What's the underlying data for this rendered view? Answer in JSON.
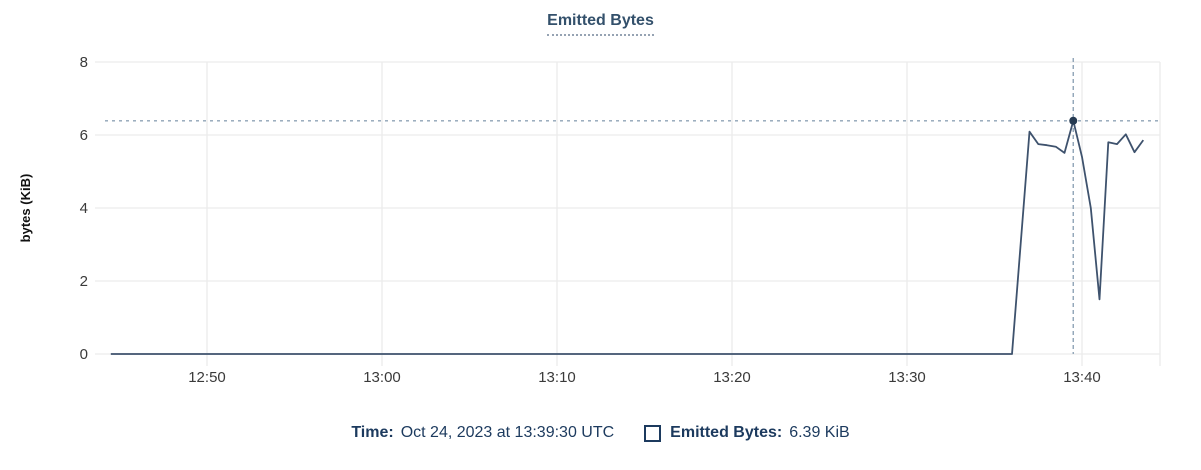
{
  "title": {
    "text": "Emitted Bytes"
  },
  "footer": {
    "time_label": "Time:",
    "time_value": "Oct 24, 2023 at 13:39:30 UTC",
    "series_label": "Emitted Bytes:",
    "series_value": "6.39 KiB"
  },
  "colors": {
    "line": "#3e526d",
    "dot": "#263b52",
    "crosshair": "#8fa3b6",
    "grid": "#ececec",
    "tick_text": "#3a3a3a",
    "axis_title_text": "#111111",
    "navy_text": "#1c3a5e",
    "title_text": "#33506b"
  },
  "chart_data": {
    "type": "line",
    "title": "Emitted Bytes",
    "xlabel": "",
    "ylabel": "bytes (KiB)",
    "y_ticks": [
      0,
      2,
      4,
      6,
      8
    ],
    "ylim": [
      0,
      8
    ],
    "x_ticks": [
      "12:50",
      "13:00",
      "13:10",
      "13:20",
      "13:30",
      "13:40"
    ],
    "x_range": [
      "12:43:30",
      "13:44:30"
    ],
    "grid": true,
    "legend_position": "bottom",
    "series": [
      {
        "name": "Emitted Bytes",
        "color": "#3e526d",
        "points": [
          [
            "12:44:30",
            0
          ],
          [
            "13:36:00",
            0
          ],
          [
            "13:37:00",
            6.09
          ],
          [
            "13:37:30",
            5.75
          ],
          [
            "13:38:00",
            5.72
          ],
          [
            "13:38:30",
            5.68
          ],
          [
            "13:39:00",
            5.51
          ],
          [
            "13:39:30",
            6.39
          ],
          [
            "13:40:00",
            5.4
          ],
          [
            "13:40:30",
            4.0
          ],
          [
            "13:41:00",
            1.5
          ],
          [
            "13:41:30",
            5.8
          ],
          [
            "13:42:00",
            5.75
          ],
          [
            "13:42:30",
            6.02
          ],
          [
            "13:43:00",
            5.53
          ],
          [
            "13:43:30",
            5.86
          ]
        ]
      }
    ],
    "selected_point": {
      "time": "13:39:30",
      "value": 6.39,
      "time_display": "Oct 24, 2023 at 13:39:30 UTC",
      "value_display": "6.39 KiB"
    }
  }
}
